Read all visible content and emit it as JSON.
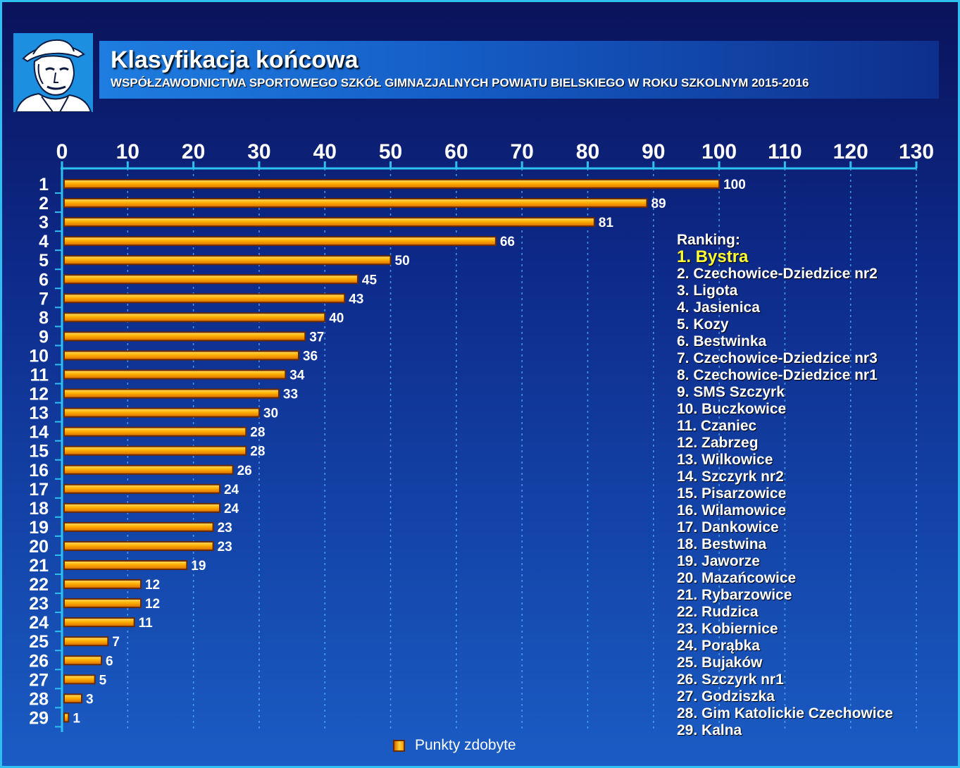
{
  "title": "Klasyfikacja końcowa",
  "subtitle": "WSPÓŁZAWODNICTWA SPORTOWEGO SZKÓŁ GIMNAZJALNYCH POWIATU BIELSKIEGO W ROKU SZKOLNYM 2015-2016",
  "colors": {
    "background_top": "#0a135a",
    "background_bottom": "#1a5cc4",
    "border": "#2ec0f0",
    "axis": "#2ec0f0",
    "bar_fill": "#ffb000",
    "bar_outline": "#6b2a00",
    "highlight_text": "#ffff33",
    "text": "#ffffff"
  },
  "logo": {
    "icon": "portrait-logo-icon"
  },
  "ranking": {
    "title": "Ranking:",
    "items": [
      "1. Bystra",
      "2. Czechowice-Dziedzice nr2",
      "3. Ligota",
      "4. Jasienica",
      "5. Kozy",
      "6. Bestwinka",
      "7. Czechowice-Dziedzice nr3",
      "8. Czechowice-Dziedzice nr1",
      "9. SMS Szczyrk",
      "10. Buczkowice",
      "11. Czaniec",
      "12. Zabrzeg",
      "13. Wilkowice",
      "14. Szczyrk nr2",
      "15. Pisarzowice",
      "16. Wilamowice",
      "17. Dankowice",
      "18. Bestwina",
      "19. Jaworze",
      "20. Mazańcowice",
      "21. Rybarzowice",
      "22. Rudzica",
      "23. Kobiernice",
      "24. Porąbka",
      "25. Bujaków",
      "26. Szczyrk nr1",
      "27. Godziszka",
      "28. Gim Katolickie Czechowice",
      "29. Kalna"
    ]
  },
  "chart_data": {
    "type": "bar",
    "orientation": "horizontal",
    "categories": [
      "1",
      "2",
      "3",
      "4",
      "5",
      "6",
      "7",
      "8",
      "9",
      "10",
      "11",
      "12",
      "13",
      "14",
      "15",
      "16",
      "17",
      "18",
      "19",
      "20",
      "21",
      "22",
      "23",
      "24",
      "25",
      "26",
      "27",
      "28",
      "29"
    ],
    "series": [
      {
        "name": "Punkty zdobyte",
        "values": [
          100,
          89,
          81,
          66,
          50,
          45,
          43,
          40,
          37,
          36,
          34,
          33,
          30,
          28,
          28,
          26,
          24,
          24,
          23,
          23,
          19,
          12,
          12,
          11,
          7,
          6,
          5,
          3,
          1
        ]
      }
    ],
    "x_ticks": [
      "0",
      "10",
      "20",
      "30",
      "40",
      "50",
      "60",
      "70",
      "80",
      "90",
      "100",
      "110",
      "120",
      "130"
    ],
    "xlim": [
      0,
      130
    ],
    "axis_position": "top",
    "grid": true,
    "grid_style": "dotted-vertical",
    "legend_position": "bottom-center",
    "data_labels": true
  }
}
